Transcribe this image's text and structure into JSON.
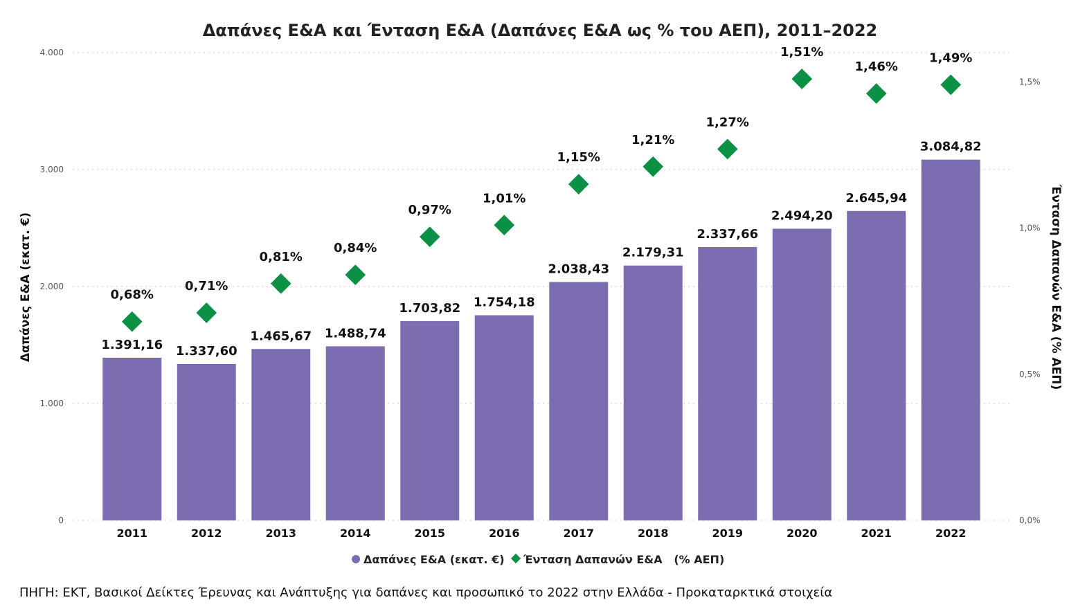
{
  "colors": {
    "bars": "#7b6db0",
    "points": "#0b9146"
  },
  "chart_data": {
    "type": "bar",
    "title": "Δαπάνες Ε&Α και Ένταση Ε&Α (Δαπάνες Ε&Α ως % του ΑΕΠ), 2011–2022",
    "categories": [
      "2011",
      "2012",
      "2013",
      "2014",
      "2015",
      "2016",
      "2017",
      "2018",
      "2019",
      "2020",
      "2021",
      "2022"
    ],
    "ylabel": "Δαπάνες Ε&Α (εκατ. €)",
    "y2label": "Ένταση Δαπανών Ε&Α (% ΑΕΠ)",
    "ylim": [
      0,
      4000
    ],
    "y2lim": [
      0,
      1.6
    ],
    "yticks": [
      0,
      1000,
      2000,
      3000,
      4000
    ],
    "yticklabels": [
      "0",
      "1.000",
      "2.000",
      "3.000",
      "4.000"
    ],
    "y2ticks": [
      0,
      0.5,
      1.0,
      1.5
    ],
    "y2ticklabels": [
      "0,0%",
      "0,5%",
      "1,0%",
      "1,5%"
    ],
    "grid": true,
    "legend_position": "bottom",
    "series": [
      {
        "name": "Δαπάνες Ε&Α (εκατ. €)",
        "type": "bar",
        "axis": "left",
        "values": [
          1391.16,
          1337.6,
          1465.67,
          1488.74,
          1703.82,
          1754.18,
          2038.43,
          2179.31,
          2337.66,
          2494.2,
          2645.94,
          3084.82
        ],
        "labels": [
          "1.391,16",
          "1.337,60",
          "1.465,67",
          "1.488,74",
          "1.703,82",
          "1.754,18",
          "2.038,43",
          "2.179,31",
          "2.337,66",
          "2.494,20",
          "2.645,94",
          "3.084,82"
        ]
      },
      {
        "name": "Ένταση Δαπανών Ε&Α   (% ΑΕΠ)",
        "type": "scatter",
        "axis": "right",
        "values": [
          0.68,
          0.71,
          0.81,
          0.84,
          0.97,
          1.01,
          1.15,
          1.21,
          1.27,
          1.51,
          1.46,
          1.49
        ],
        "labels": [
          "0,68%",
          "0,71%",
          "0,81%",
          "0,84%",
          "0,97%",
          "1,01%",
          "1,15%",
          "1,21%",
          "1,27%",
          "1,51%",
          "1,46%",
          "1,49%"
        ]
      }
    ]
  },
  "source_note": "ΠΗΓΗ: ΕΚΤ, Βασικοί Δείκτες Έρευνας και Ανάπτυξης για δαπάνες και προσωπικό το 2022 στην Ελλάδα - Προκαταρκτικά στοιχεία"
}
